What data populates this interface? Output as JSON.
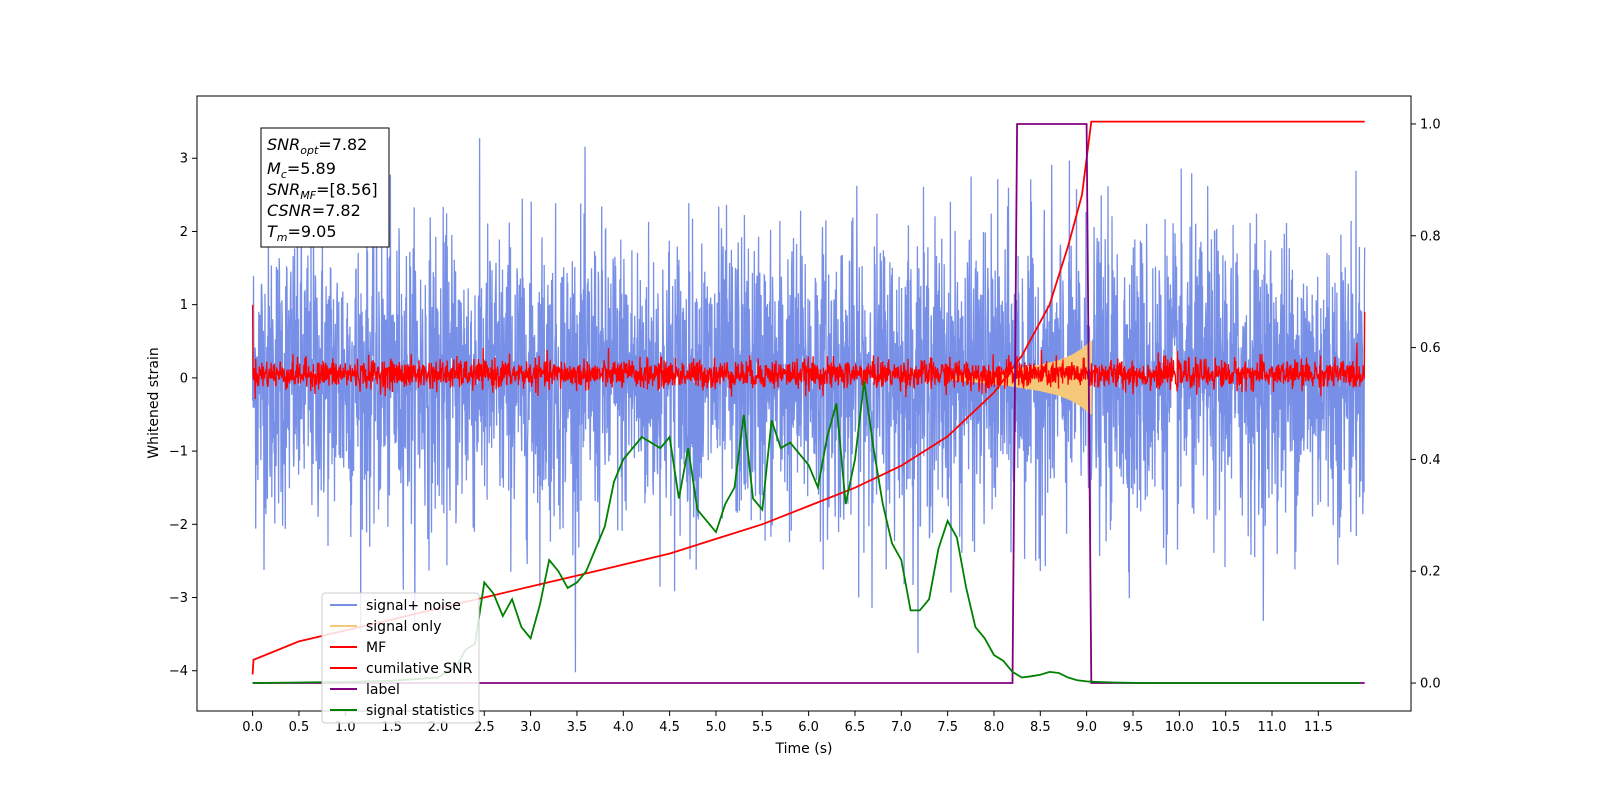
{
  "chart_data": {
    "type": "line",
    "title": "",
    "xlabel": "Time (s)",
    "ylabel": "Whitened strain",
    "xlim": [
      -0.6,
      12.5
    ],
    "ylim": [
      -4.55,
      3.85
    ],
    "y2lim": [
      -0.05,
      1.05
    ],
    "x_ticks": [
      0.0,
      0.5,
      1.0,
      1.5,
      2.0,
      2.5,
      3.0,
      3.5,
      4.0,
      4.5,
      5.0,
      5.5,
      6.0,
      6.5,
      7.0,
      7.5,
      8.0,
      8.5,
      9.0,
      9.5,
      10.0,
      10.5,
      11.0,
      11.5
    ],
    "x_tick_labels": [
      "0.0",
      "0.5",
      "1.0",
      "1.5",
      "2.0",
      "2.5",
      "3.0",
      "3.5",
      "4.0",
      "4.5",
      "5.0",
      "5.5",
      "6.0",
      "6.5",
      "7.0",
      "7.5",
      "8.0",
      "8.5",
      "9.0",
      "9.5",
      "10.0",
      "10.5",
      "11.0",
      "11.5"
    ],
    "y_ticks": [
      -4,
      -3,
      -2,
      -1,
      0,
      1,
      2,
      3
    ],
    "y_tick_labels": [
      "−4",
      "−3",
      "−2",
      "−1",
      "0",
      "1",
      "2",
      "3"
    ],
    "y2_ticks": [
      0.0,
      0.2,
      0.4,
      0.6,
      0.8,
      1.0
    ],
    "y2_tick_labels": [
      "0.0",
      "0.2",
      "0.4",
      "0.6",
      "0.8",
      "1.0"
    ],
    "info_box": {
      "snr_opt": {
        "main": "SNR",
        "sub": "opt",
        "value": "=7.82"
      },
      "mc": {
        "main": "M",
        "sub": "c",
        "value": "=5.89"
      },
      "snr_mf": {
        "main": "SNR",
        "sub": "MF",
        "value": "=[8.56]"
      },
      "csnr": {
        "main": "CSNR",
        "sub": "",
        "value": "=7.82"
      },
      "tm": {
        "main": "T",
        "sub": "m",
        "value": "=9.05"
      }
    },
    "legend_position": "lower-left",
    "series": [
      {
        "name": "signal+ noise",
        "axis": "left",
        "color": "#778fe6",
        "description_values": {
          "t_start": 0.0,
          "t_end": 12.0,
          "mean": 0.0,
          "std": 1.0,
          "peak_max": 3.5,
          "peak_min": -4.15
        }
      },
      {
        "name": "signal only",
        "axis": "left",
        "color": "#f5c87a",
        "envelope": {
          "t": [
            7.5,
            7.8,
            8.1,
            8.3,
            8.5,
            8.7,
            8.85,
            8.95,
            9.05
          ],
          "amplitude": [
            0.02,
            0.06,
            0.1,
            0.14,
            0.18,
            0.24,
            0.32,
            0.4,
            0.5
          ]
        }
      },
      {
        "name": "MF",
        "axis": "left",
        "color": "#ff0000",
        "description_values": {
          "t_start": 0.0,
          "t_end": 12.0,
          "mean": 0.05,
          "std": 0.1
        }
      },
      {
        "name": "cumilative SNR",
        "axis": "left",
        "color": "#ff0000",
        "x": [
          0.0,
          0.01,
          0.5,
          1.0,
          1.5,
          2.0,
          2.5,
          3.0,
          3.5,
          4.0,
          4.5,
          5.0,
          5.5,
          6.0,
          6.5,
          7.0,
          7.5,
          8.0,
          8.3,
          8.6,
          8.8,
          8.95,
          9.05,
          12.0
        ],
        "y": [
          -4.05,
          -3.85,
          -3.6,
          -3.45,
          -3.3,
          -3.15,
          -3.0,
          -2.85,
          -2.7,
          -2.55,
          -2.4,
          -2.2,
          -2.0,
          -1.75,
          -1.5,
          -1.2,
          -0.8,
          -0.2,
          0.3,
          1.0,
          1.8,
          2.5,
          3.5,
          3.5
        ]
      },
      {
        "name": "label",
        "axis": "right",
        "color": "#800080",
        "x": [
          0.0,
          8.2,
          8.25,
          9.0,
          9.05,
          12.0
        ],
        "y": [
          0.0,
          0.0,
          1.0,
          1.0,
          0.0,
          0.0
        ]
      },
      {
        "name": "signal statistics",
        "axis": "right",
        "color": "#008000",
        "x": [
          0.0,
          0.5,
          1.0,
          1.5,
          2.0,
          2.2,
          2.3,
          2.4,
          2.5,
          2.6,
          2.7,
          2.8,
          2.9,
          3.0,
          3.1,
          3.2,
          3.3,
          3.4,
          3.5,
          3.6,
          3.7,
          3.8,
          3.9,
          4.0,
          4.1,
          4.2,
          4.3,
          4.4,
          4.5,
          4.6,
          4.7,
          4.8,
          4.9,
          5.0,
          5.1,
          5.2,
          5.3,
          5.4,
          5.5,
          5.6,
          5.7,
          5.8,
          5.9,
          6.0,
          6.1,
          6.2,
          6.3,
          6.4,
          6.5,
          6.6,
          6.7,
          6.8,
          6.9,
          7.0,
          7.1,
          7.2,
          7.3,
          7.4,
          7.5,
          7.6,
          7.7,
          7.8,
          7.9,
          8.0,
          8.1,
          8.2,
          8.3,
          8.4,
          8.5,
          8.6,
          8.7,
          8.8,
          8.9,
          9.0,
          9.1,
          9.3,
          9.6,
          10.0,
          10.5,
          11.0,
          11.5,
          11.95
        ],
        "y": [
          0.0,
          0.001,
          0.002,
          0.004,
          0.01,
          0.03,
          0.06,
          0.07,
          0.18,
          0.16,
          0.12,
          0.15,
          0.1,
          0.08,
          0.14,
          0.22,
          0.2,
          0.17,
          0.18,
          0.2,
          0.24,
          0.28,
          0.36,
          0.4,
          0.42,
          0.44,
          0.43,
          0.42,
          0.44,
          0.33,
          0.42,
          0.31,
          0.29,
          0.27,
          0.32,
          0.35,
          0.48,
          0.33,
          0.31,
          0.47,
          0.42,
          0.43,
          0.41,
          0.39,
          0.35,
          0.44,
          0.5,
          0.32,
          0.4,
          0.54,
          0.42,
          0.32,
          0.25,
          0.22,
          0.13,
          0.13,
          0.15,
          0.24,
          0.29,
          0.26,
          0.17,
          0.1,
          0.08,
          0.05,
          0.04,
          0.02,
          0.01,
          0.012,
          0.015,
          0.02,
          0.018,
          0.01,
          0.005,
          0.003,
          0.002,
          0.001,
          0.0,
          0.0,
          0.0,
          0.0,
          0.0,
          0.0
        ]
      }
    ]
  }
}
